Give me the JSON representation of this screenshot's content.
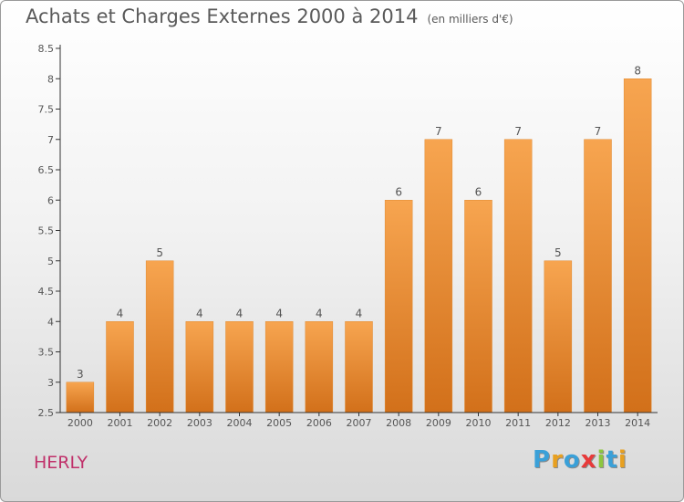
{
  "title": "Achats et Charges Externes 2000 à 2014",
  "unit_note": "(en milliers d'€)",
  "commune": "HERLY",
  "logo": {
    "text": "Proxiti",
    "letters": [
      {
        "ch": "P",
        "color": "#3aa0d8"
      },
      {
        "ch": "r",
        "color": "#e8a020"
      },
      {
        "ch": "o",
        "color": "#3aa0d8"
      },
      {
        "ch": "x",
        "color": "#e83a3a"
      },
      {
        "ch": "i",
        "color": "#8cc63f"
      },
      {
        "ch": "t",
        "color": "#3aa0d8"
      },
      {
        "ch": "i",
        "color": "#e8a020"
      }
    ]
  },
  "colors": {
    "bar_light": "#f7a550",
    "bar_dark": "#d2701a",
    "axis": "#333333"
  },
  "chart_data": {
    "type": "bar",
    "title": "Achats et Charges Externes 2000 à 2014",
    "xlabel": "",
    "ylabel": "",
    "categories": [
      "2000",
      "2001",
      "2002",
      "2003",
      "2004",
      "2005",
      "2006",
      "2007",
      "2008",
      "2009",
      "2010",
      "2011",
      "2012",
      "2013",
      "2014"
    ],
    "values": [
      3,
      4,
      5,
      4,
      4,
      4,
      4,
      4,
      6,
      7,
      6,
      7,
      5,
      7,
      8
    ],
    "ylim": [
      2.5,
      8.5
    ],
    "yticks": [
      "2.5",
      "3",
      "3.5",
      "4",
      "4.5",
      "5",
      "5.5",
      "6",
      "6.5",
      "7",
      "7.5",
      "8",
      "8.5"
    ],
    "grid": false,
    "legend": "none"
  }
}
